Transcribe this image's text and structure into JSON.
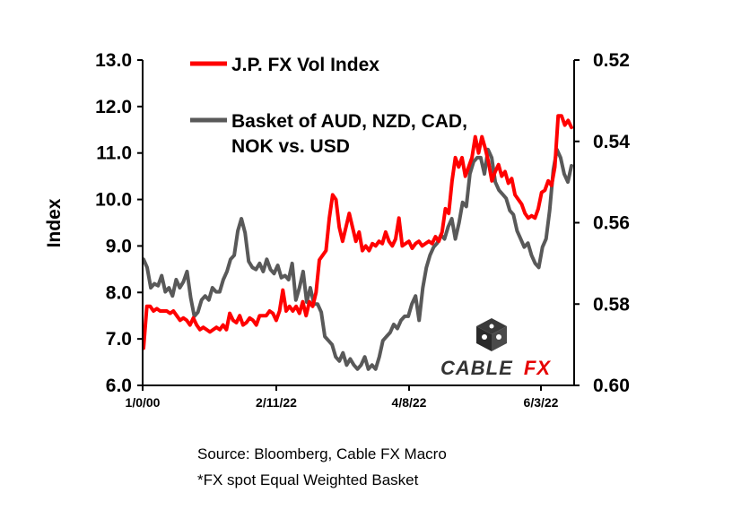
{
  "chart_data": {
    "type": "line",
    "ylabel": "Index",
    "left_axis": {
      "ylim": [
        6.0,
        13.0
      ],
      "ticks": [
        "6.0",
        "7.0",
        "8.0",
        "9.0",
        "10.0",
        "11.0",
        "12.0",
        "13.0"
      ]
    },
    "right_axis": {
      "ylim": [
        0.6,
        0.52
      ],
      "inverted": true,
      "ticks": [
        "0.52",
        "0.54",
        "0.56",
        "0.58",
        "0.60"
      ]
    },
    "x_ticks": [
      "1/0/00",
      "2/11/22",
      "4/8/22",
      "6/3/22"
    ],
    "grid": false,
    "legend_position": "top-left inside",
    "series": [
      {
        "name": "J.P. FX Vol Index",
        "axis": "left",
        "color": "#ff0000",
        "values": [
          6.8,
          7.7,
          7.7,
          7.6,
          7.65,
          7.6,
          7.6,
          7.6,
          7.55,
          7.6,
          7.5,
          7.4,
          7.45,
          7.4,
          7.3,
          7.45,
          7.3,
          7.2,
          7.25,
          7.2,
          7.15,
          7.2,
          7.25,
          7.2,
          7.3,
          7.2,
          7.55,
          7.4,
          7.35,
          7.5,
          7.3,
          7.35,
          7.45,
          7.4,
          7.3,
          7.5,
          7.5,
          7.5,
          7.6,
          7.55,
          7.4,
          7.6,
          8.05,
          7.6,
          7.7,
          7.6,
          7.7,
          7.55,
          7.8,
          7.5,
          7.8,
          7.7,
          8.0,
          8.7,
          8.8,
          8.9,
          9.6,
          10.1,
          10.0,
          9.4,
          9.1,
          9.4,
          9.7,
          9.4,
          9.1,
          9.3,
          8.9,
          9.0,
          8.9,
          9.05,
          9.0,
          9.1,
          9.05,
          9.3,
          9.1,
          9.0,
          9.15,
          9.6,
          9.0,
          9.05,
          9.1,
          8.95,
          9.05,
          9.1,
          9.0,
          9.05,
          9.1,
          9.05,
          9.2,
          9.1,
          9.3,
          9.8,
          9.7,
          10.4,
          10.9,
          10.7,
          10.9,
          10.5,
          10.7,
          10.9,
          11.35,
          11.0,
          11.35,
          11.1,
          10.8,
          10.4,
          10.6,
          10.75,
          10.5,
          10.6,
          10.35,
          10.45,
          10.1,
          10.0,
          9.9,
          9.7,
          9.6,
          9.65,
          9.6,
          9.8,
          10.15,
          10.2,
          10.4,
          10.3,
          10.7,
          11.8,
          11.8,
          11.6,
          11.7,
          11.55
        ]
      },
      {
        "name": "Basket of AUD, NZD, CAD, NOK vs. USD",
        "axis": "right",
        "color": "#595959",
        "values": [
          0.569,
          0.571,
          0.576,
          0.575,
          0.5755,
          0.573,
          0.577,
          0.576,
          0.578,
          0.574,
          0.576,
          0.5745,
          0.572,
          0.5785,
          0.583,
          0.582,
          0.579,
          0.578,
          0.579,
          0.576,
          0.577,
          0.577,
          0.574,
          0.572,
          0.569,
          0.568,
          0.562,
          0.559,
          0.5625,
          0.5695,
          0.571,
          0.5715,
          0.57,
          0.572,
          0.569,
          0.5715,
          0.5725,
          0.5705,
          0.5735,
          0.573,
          0.574,
          0.57,
          0.579,
          0.576,
          0.572,
          0.5795,
          0.576,
          0.58,
          0.58,
          0.582,
          0.588,
          0.589,
          0.59,
          0.593,
          0.594,
          0.592,
          0.595,
          0.5935,
          0.595,
          0.596,
          0.595,
          0.593,
          0.596,
          0.595,
          0.596,
          0.593,
          0.589,
          0.588,
          0.587,
          0.585,
          0.586,
          0.584,
          0.583,
          0.583,
          0.58,
          0.578,
          0.584,
          0.576,
          0.571,
          0.568,
          0.566,
          0.565,
          0.563,
          0.564,
          0.561,
          0.559,
          0.564,
          0.56,
          0.555,
          0.556,
          0.548,
          0.545,
          0.544,
          0.544,
          0.548,
          0.542,
          0.544,
          0.55,
          0.552,
          0.553,
          0.554,
          0.557,
          0.558,
          0.562,
          0.564,
          0.566,
          0.565,
          0.568,
          0.57,
          0.571,
          0.566,
          0.564,
          0.557,
          0.547,
          0.542,
          0.544,
          0.548,
          0.55,
          0.546
        ]
      }
    ]
  },
  "watermark": {
    "brand_prefix": "CABLE",
    "brand_suffix": "FX",
    "icon": "dice-cube-icon"
  },
  "footnotes": {
    "source": "Source: Bloomberg, Cable FX Macro",
    "note": "*FX spot Equal Weighted Basket"
  },
  "colors": {
    "vol_index": "#ff0000",
    "basket": "#595959",
    "axis": "#000000",
    "brand_suffix": "#e60000"
  }
}
